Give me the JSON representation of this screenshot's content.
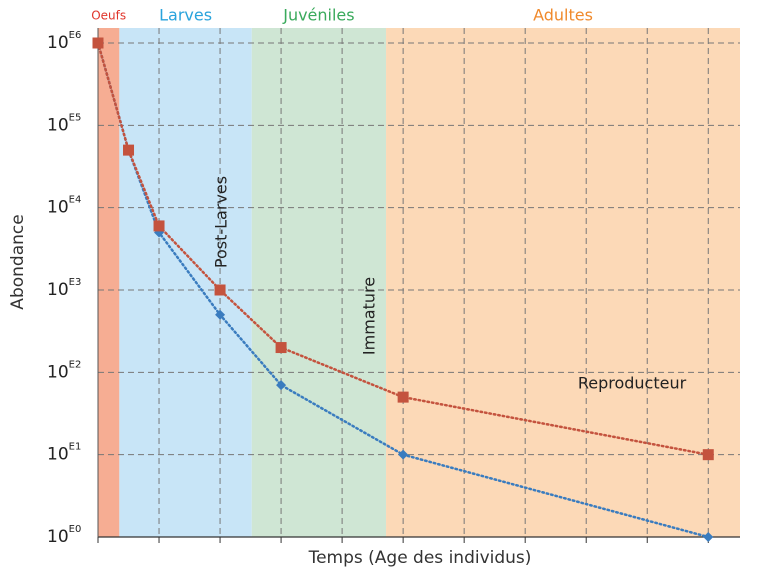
{
  "chart_data": {
    "type": "line",
    "x_label": "Temps (Age des individus)",
    "y_label": "Abondance",
    "y_scale": "log",
    "grid": true,
    "xlim": [
      0,
      10.52
    ],
    "xticks": [
      0,
      1,
      2,
      3,
      4,
      5,
      6,
      7,
      8,
      9,
      10
    ],
    "ylim": [
      1,
      1000000
    ],
    "yticks": [
      {
        "value": 1,
        "label": "10E0"
      },
      {
        "value": 10,
        "label": "10E1"
      },
      {
        "value": 100,
        "label": "10E2"
      },
      {
        "value": 1000,
        "label": "10E3"
      },
      {
        "value": 10000,
        "label": "10E4"
      },
      {
        "value": 100000,
        "label": "10E5"
      },
      {
        "value": 1000000,
        "label": "10E6"
      }
    ],
    "stages": [
      {
        "name": "Oeufs",
        "start": 0,
        "end": 0.35,
        "color": "#f6ad93",
        "text_color": "#e0352b"
      },
      {
        "name": "Larves",
        "start": 0.35,
        "end": 2.52,
        "color": "#c8e5f7",
        "text_color": "#29a3dc"
      },
      {
        "name": "Juvéniles",
        "start": 2.52,
        "end": 4.72,
        "color": "#cfe6d4",
        "text_color": "#3aaa5c"
      },
      {
        "name": "Adultes",
        "start": 4.72,
        "end": 10.52,
        "color": "#fcd9b7",
        "text_color": "#f08a2c"
      }
    ],
    "annotations": [
      "Post-Larves",
      "Immature",
      "Reproducteur"
    ],
    "series": [
      {
        "name": "blue",
        "color": "#3a7cbf",
        "marker": "diamond",
        "x": [
          0,
          0.5,
          1,
          2,
          3,
          5,
          10
        ],
        "values": [
          1000000,
          50000,
          5000,
          500,
          70,
          10,
          1
        ]
      },
      {
        "name": "red",
        "color": "#c4533e",
        "marker": "square",
        "x": [
          0,
          0.5,
          1,
          2,
          3,
          5,
          10
        ],
        "values": [
          1000000,
          50000,
          6000,
          1000,
          200,
          50,
          10
        ]
      }
    ]
  }
}
